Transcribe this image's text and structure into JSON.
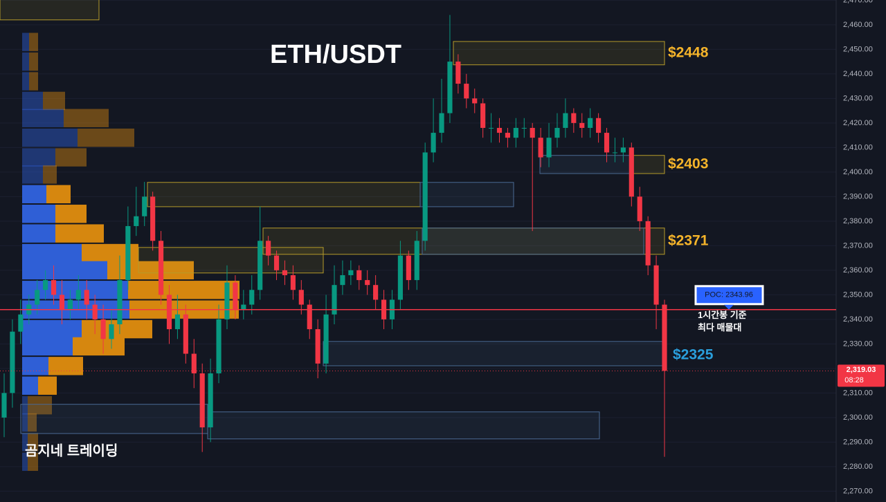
{
  "chart_data": {
    "type": "candlestick",
    "title": "ETH/USDT",
    "watermark": "곰지네 트레이딩",
    "up_color": "#089981",
    "down_color": "#f23645",
    "ylim": [
      2265.6,
      2470.1
    ],
    "yticks": [
      {
        "value": 2270,
        "label": "2,270.00"
      },
      {
        "value": 2280,
        "label": "2,280.00"
      },
      {
        "value": 2290,
        "label": "2,290.00"
      },
      {
        "value": 2300,
        "label": "2,300.00"
      },
      {
        "value": 2310,
        "label": "2,310.00"
      },
      {
        "value": 2320,
        "label": "2,320.00"
      },
      {
        "value": 2330,
        "label": "2,330.00"
      },
      {
        "value": 2340,
        "label": "2,340.00"
      },
      {
        "value": 2350,
        "label": "2,350.00"
      },
      {
        "value": 2360,
        "label": "2,360.00"
      },
      {
        "value": 2370,
        "label": "2,370.00"
      },
      {
        "value": 2380,
        "label": "2,380.00"
      },
      {
        "value": 2390,
        "label": "2,390.00"
      },
      {
        "value": 2400,
        "label": "2,400.00"
      },
      {
        "value": 2410,
        "label": "2,410.00"
      },
      {
        "value": 2420,
        "label": "2,420.00"
      },
      {
        "value": 2430,
        "label": "2,430.00"
      },
      {
        "value": 2440,
        "label": "2,440.00"
      },
      {
        "value": 2450,
        "label": "2,450.00"
      },
      {
        "value": 2460,
        "label": "2,460.00"
      },
      {
        "value": 2470,
        "label": "2,470.00"
      }
    ],
    "grid": true,
    "open": [
      2300,
      2310,
      2335,
      2342,
      2346,
      2352,
      2356,
      2350,
      2344,
      2348,
      2352,
      2346,
      2340,
      2332,
      2338,
      2356,
      2378,
      2382,
      2390,
      2372,
      2350,
      2336,
      2342,
      2326,
      2318,
      2296,
      2318,
      2340,
      2355,
      2344,
      2346,
      2352,
      2372,
      2366,
      2360,
      2358,
      2352,
      2346,
      2336,
      2322,
      2342,
      2354,
      2358,
      2360,
      2356,
      2354,
      2348,
      2340,
      2348,
      2366,
      2356,
      2372,
      2408,
      2416,
      2424,
      2445,
      2436,
      2430,
      2428,
      2418,
      2418,
      2416,
      2414,
      2418,
      2418,
      2414,
      2406,
      2414,
      2418,
      2424,
      2420,
      2418,
      2422,
      2416,
      2408,
      2408,
      2410,
      2390,
      2380,
      2362,
      2346
    ],
    "high": [
      2318,
      2340,
      2348,
      2350,
      2356,
      2360,
      2362,
      2356,
      2352,
      2358,
      2356,
      2350,
      2346,
      2344,
      2366,
      2386,
      2394,
      2396,
      2392,
      2376,
      2354,
      2350,
      2346,
      2332,
      2322,
      2324,
      2346,
      2362,
      2358,
      2352,
      2358,
      2386,
      2374,
      2368,
      2364,
      2362,
      2356,
      2348,
      2340,
      2350,
      2362,
      2364,
      2364,
      2362,
      2360,
      2358,
      2352,
      2352,
      2372,
      2368,
      2376,
      2412,
      2430,
      2438,
      2464,
      2448,
      2440,
      2434,
      2430,
      2424,
      2422,
      2418,
      2422,
      2422,
      2420,
      2418,
      2420,
      2424,
      2430,
      2426,
      2424,
      2426,
      2424,
      2418,
      2414,
      2414,
      2412,
      2394,
      2382,
      2366,
      2348
    ],
    "low": [
      2292,
      2304,
      2330,
      2338,
      2342,
      2348,
      2346,
      2338,
      2340,
      2344,
      2340,
      2334,
      2326,
      2328,
      2334,
      2352,
      2374,
      2378,
      2368,
      2346,
      2330,
      2332,
      2322,
      2312,
      2286,
      2290,
      2314,
      2336,
      2340,
      2340,
      2342,
      2348,
      2362,
      2356,
      2354,
      2348,
      2342,
      2332,
      2316,
      2318,
      2338,
      2350,
      2354,
      2352,
      2350,
      2344,
      2336,
      2336,
      2344,
      2352,
      2352,
      2368,
      2404,
      2412,
      2420,
      2432,
      2426,
      2424,
      2414,
      2412,
      2412,
      2410,
      2410,
      2414,
      2376,
      2402,
      2402,
      2410,
      2414,
      2416,
      2414,
      2414,
      2412,
      2404,
      2404,
      2404,
      2386,
      2376,
      2358,
      2336,
      2284
    ],
    "close": [
      2310,
      2335,
      2342,
      2346,
      2352,
      2356,
      2350,
      2344,
      2348,
      2352,
      2346,
      2340,
      2332,
      2338,
      2356,
      2378,
      2382,
      2390,
      2372,
      2350,
      2336,
      2342,
      2326,
      2318,
      2296,
      2318,
      2340,
      2355,
      2344,
      2346,
      2352,
      2372,
      2366,
      2360,
      2358,
      2352,
      2346,
      2336,
      2322,
      2342,
      2354,
      2358,
      2360,
      2356,
      2354,
      2348,
      2340,
      2348,
      2366,
      2356,
      2372,
      2408,
      2416,
      2424,
      2445,
      2436,
      2430,
      2428,
      2418,
      2418,
      2416,
      2414,
      2418,
      2418,
      2414,
      2406,
      2414,
      2418,
      2424,
      2420,
      2418,
      2422,
      2416,
      2408,
      2408,
      2410,
      2390,
      2380,
      2362,
      2346,
      2319.03
    ],
    "volume_profile": {
      "prices": [
        2453,
        2445,
        2437,
        2429,
        2422,
        2414,
        2406,
        2399,
        2391,
        2383,
        2375,
        2367,
        2360,
        2352,
        2344,
        2336,
        2329,
        2321,
        2313,
        2305,
        2298,
        2290,
        2282
      ],
      "buy": [
        10,
        10,
        10,
        30,
        60,
        80,
        48,
        30,
        35,
        48,
        48,
        86,
        123,
        153,
        155,
        86,
        73,
        38,
        23,
        8,
        8,
        8,
        8
      ],
      "sell": [
        13,
        13,
        13,
        32,
        65,
        82,
        45,
        20,
        35,
        45,
        70,
        82,
        125,
        161,
        158,
        102,
        75,
        50,
        27,
        35,
        13,
        15,
        15
      ],
      "buy_color": "#2f5fd6",
      "sell_color": "#d6870f",
      "value_area": [
        2308,
        2398
      ]
    },
    "zones": [
      {
        "low": 2462,
        "high": 2471,
        "color": "#b59b2a"
      },
      {
        "low": 2443.7,
        "high": 2453.2,
        "color": "#b59b2a",
        "label": "$2448",
        "label_color": "#f5b42a"
      },
      {
        "low": 2399.4,
        "high": 2406.8,
        "color": "#4a6a94"
      },
      {
        "low": 2399.4,
        "high": 2406.8,
        "color": "#b59b2a",
        "label": "$2403",
        "label_color": "#f5b42a"
      },
      {
        "low": 2385.9,
        "high": 2395.8,
        "color": "#b59b2a"
      },
      {
        "low": 2385.9,
        "high": 2395.8,
        "color": "#4a6a94"
      },
      {
        "low": 2366.5,
        "high": 2377.2,
        "color": "#b59b2a",
        "label": "$2371",
        "label_color": "#f5b42a"
      },
      {
        "low": 2366.5,
        "high": 2377.2,
        "color": "#4a6a94"
      },
      {
        "low": 2358.9,
        "high": 2369.3,
        "color": "#b59b2a"
      },
      {
        "low": 2321.1,
        "high": 2331,
        "color": "#4a6a94",
        "label": "$2325",
        "label_color": "#2a9fdc"
      },
      {
        "low": 2293.5,
        "high": 2305.4,
        "color": "#4a6a94"
      },
      {
        "low": 2291.3,
        "high": 2302.3,
        "color": "#4a6a94"
      }
    ],
    "poc": {
      "value": 2343.96,
      "label": "POC: 2343.96",
      "note": [
        "1시간봉 기준",
        "최다 매물대"
      ],
      "color": "#f23645"
    },
    "last_price": {
      "value": 2319.03,
      "label": "2,319.03",
      "countdown": "08:28"
    }
  }
}
